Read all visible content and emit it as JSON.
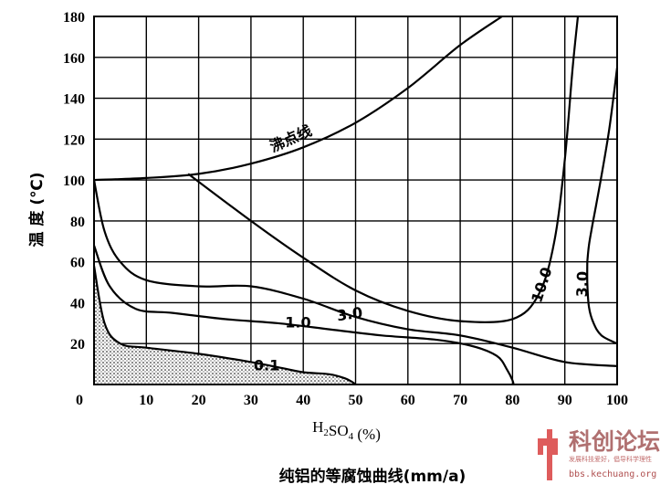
{
  "chart_data": {
    "type": "line",
    "title": "纯铝的等腐蚀曲线(mm/a)",
    "xlabel": "H2SO4 (%)",
    "ylabel": "温 度 (℃)",
    "xlim": [
      0,
      100
    ],
    "ylim": [
      0,
      180
    ],
    "x_ticks": [
      "10",
      "20",
      "30",
      "40",
      "50",
      "60",
      "70",
      "80",
      "90",
      "100"
    ],
    "y_ticks": [
      "0",
      "20",
      "40",
      "60",
      "80",
      "100",
      "120",
      "140",
      "160",
      "180"
    ],
    "grid": true,
    "series": [
      {
        "name": "沸点线",
        "x": [
          0,
          10,
          20,
          30,
          40,
          50,
          60,
          70,
          78
        ],
        "y": [
          100,
          101,
          103,
          108,
          116,
          128,
          145,
          166,
          180
        ]
      },
      {
        "name": "10.0",
        "x": [
          18,
          30,
          40,
          50,
          60,
          70,
          80,
          85,
          88,
          90,
          91.5,
          92.5
        ],
        "y": [
          103,
          80,
          62,
          46,
          36,
          31,
          32,
          44,
          70,
          110,
          155,
          180
        ]
      },
      {
        "name": "3.0",
        "x": [
          0,
          2,
          5,
          10,
          20,
          30,
          40,
          50,
          60,
          70,
          80,
          90,
          100
        ],
        "y": [
          100,
          75,
          60,
          51,
          48,
          48,
          42,
          33,
          27,
          24,
          18,
          11,
          9
        ]
      },
      {
        "name": "3.0",
        "x": [
          94.3,
          94.3,
          94.6,
          95.5,
          97,
          100
        ],
        "y": [
          60,
          50,
          38,
          30,
          24,
          20
        ]
      },
      {
        "name": "3.0",
        "x": [
          100,
          98.5,
          97,
          96,
          95.2,
          94.6,
          94.3
        ],
        "y": [
          155,
          125,
          102,
          88,
          77,
          68,
          60
        ]
      },
      {
        "name": "1.0",
        "x": [
          0,
          3,
          8,
          15,
          25,
          35,
          45,
          55,
          65,
          72,
          77,
          79,
          80,
          80.2
        ],
        "y": [
          68,
          48,
          37,
          35,
          32,
          30,
          27,
          24,
          22,
          19,
          14,
          7,
          2,
          0
        ]
      },
      {
        "name": "0.1",
        "x": [
          0,
          2,
          5,
          10,
          20,
          30,
          36,
          40,
          45,
          48,
          49.5,
          50
        ],
        "y": [
          58,
          30,
          20,
          18,
          15,
          11,
          8,
          6,
          5,
          3,
          1,
          0
        ]
      }
    ],
    "labels": [
      {
        "text": "沸点线",
        "x": 38,
        "y": 118,
        "rotate": -24
      },
      {
        "text": "10.0",
        "x": 86.5,
        "y": 48,
        "rotate": -72
      },
      {
        "text": "3.0",
        "x": 49,
        "y": 32,
        "rotate": -8
      },
      {
        "text": "3.0",
        "x": 94.3,
        "y": 49,
        "rotate": -88
      },
      {
        "text": "1.0",
        "x": 39,
        "y": 28,
        "rotate": 0
      },
      {
        "text": "0.1",
        "x": 33,
        "y": 7,
        "rotate": 0
      }
    ],
    "shaded_region": "0.1"
  },
  "watermark": {
    "main": "科创论坛",
    "sub": "发展科技爱好，倡导科学理性",
    "url": "bbs.kechuang.org"
  }
}
